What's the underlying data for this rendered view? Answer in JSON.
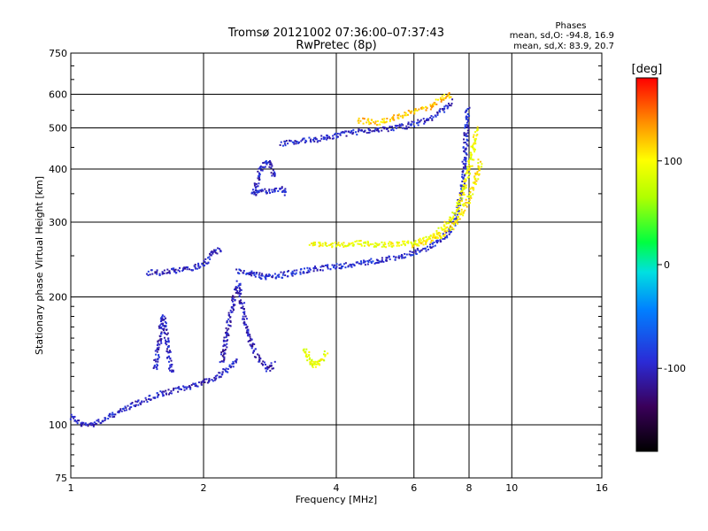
{
  "chart_data": {
    "type": "scatter",
    "title": "Tromsø 20121002 07:36:00–07:37:43",
    "subtitle": "RwPretec (8p)",
    "xlabel": "Frequency [MHz]",
    "ylabel": "Stationary phase Virtual Height [km]",
    "x_scale": "log2",
    "y_scale": "log",
    "xlim": [
      1,
      16
    ],
    "ylim": [
      75,
      750
    ],
    "x_ticks": [
      "1",
      "2",
      "4",
      "6",
      "8",
      "10",
      "16"
    ],
    "y_ticks": [
      "75",
      "100",
      "200",
      "300",
      "400",
      "500",
      "600",
      "750"
    ],
    "grid": true,
    "phase_box": {
      "title": "Phases",
      "line_o": "mean, sd,O: -94.8, 16.9",
      "line_x": "mean, sd,X: 83.9, 20.7"
    },
    "colorbar": {
      "label": "[deg]",
      "range": [
        -180,
        180
      ],
      "ticks": [
        "100",
        "0",
        "-100"
      ]
    },
    "traces": [
      {
        "phase": -100,
        "points": [
          [
            1.0,
            105
          ],
          [
            1.05,
            100
          ],
          [
            1.1,
            100
          ],
          [
            1.2,
            103
          ],
          [
            1.3,
            108
          ],
          [
            1.4,
            112
          ],
          [
            1.5,
            115
          ],
          [
            1.6,
            118
          ],
          [
            1.7,
            120
          ],
          [
            1.8,
            122
          ],
          [
            1.9,
            124
          ],
          [
            2.0,
            126
          ],
          [
            2.1,
            128
          ],
          [
            2.2,
            132
          ],
          [
            2.3,
            138
          ],
          [
            2.4,
            142
          ]
        ]
      },
      {
        "phase": -100,
        "points": [
          [
            1.55,
            135
          ],
          [
            1.58,
            150
          ],
          [
            1.6,
            165
          ],
          [
            1.62,
            180
          ],
          [
            1.64,
            170
          ],
          [
            1.66,
            150
          ],
          [
            1.68,
            140
          ],
          [
            1.7,
            132
          ]
        ]
      },
      {
        "phase": -105,
        "points": [
          [
            2.2,
            140
          ],
          [
            2.25,
            160
          ],
          [
            2.3,
            180
          ],
          [
            2.35,
            200
          ],
          [
            2.4,
            215
          ],
          [
            2.45,
            190
          ],
          [
            2.5,
            170
          ],
          [
            2.6,
            150
          ],
          [
            2.7,
            140
          ],
          [
            2.8,
            135
          ],
          [
            2.9,
            140
          ]
        ]
      },
      {
        "phase": -100,
        "points": [
          [
            1.5,
            228
          ],
          [
            1.6,
            228
          ],
          [
            1.7,
            230
          ],
          [
            1.8,
            232
          ],
          [
            1.9,
            235
          ],
          [
            2.0,
            238
          ],
          [
            2.1,
            255
          ],
          [
            2.2,
            260
          ]
        ]
      },
      {
        "phase": -95,
        "points": [
          [
            2.4,
            230
          ],
          [
            2.5,
            228
          ],
          [
            2.6,
            226
          ],
          [
            2.7,
            224
          ],
          [
            2.8,
            223
          ],
          [
            3.0,
            225
          ],
          [
            3.5,
            232
          ],
          [
            4.0,
            236
          ],
          [
            4.5,
            240
          ],
          [
            5.0,
            244
          ],
          [
            5.5,
            248
          ],
          [
            6.0,
            255
          ],
          [
            6.5,
            262
          ],
          [
            7.0,
            275
          ],
          [
            7.4,
            300
          ],
          [
            7.7,
            350
          ],
          [
            7.8,
            400
          ],
          [
            7.85,
            450
          ],
          [
            7.9,
            500
          ],
          [
            7.95,
            560
          ]
        ]
      },
      {
        "phase": -100,
        "points": [
          [
            2.6,
            350
          ],
          [
            2.8,
            355
          ],
          [
            3.0,
            360
          ],
          [
            3.1,
            350
          ]
        ]
      },
      {
        "phase": -100,
        "points": [
          [
            2.6,
            350
          ],
          [
            2.7,
            400
          ],
          [
            2.8,
            420
          ],
          [
            2.9,
            380
          ]
        ]
      },
      {
        "phase": -98,
        "points": [
          [
            3.0,
            460
          ],
          [
            3.3,
            465
          ],
          [
            3.6,
            470
          ],
          [
            4.0,
            480
          ],
          [
            4.5,
            490
          ],
          [
            5.0,
            495
          ],
          [
            5.5,
            500
          ],
          [
            6.0,
            510
          ],
          [
            6.5,
            525
          ],
          [
            7.0,
            550
          ],
          [
            7.3,
            580
          ]
        ]
      },
      {
        "phase": 95,
        "points": [
          [
            3.5,
            265
          ],
          [
            4.0,
            265
          ],
          [
            4.5,
            268
          ],
          [
            5.0,
            265
          ],
          [
            5.5,
            266
          ],
          [
            6.0,
            268
          ],
          [
            6.5,
            275
          ],
          [
            7.0,
            290
          ],
          [
            7.5,
            320
          ],
          [
            7.8,
            360
          ],
          [
            8.0,
            400
          ],
          [
            8.2,
            450
          ],
          [
            8.3,
            500
          ]
        ]
      },
      {
        "phase": 105,
        "points": [
          [
            6.0,
            265
          ],
          [
            6.5,
            270
          ],
          [
            7.0,
            280
          ],
          [
            7.5,
            300
          ],
          [
            8.0,
            340
          ],
          [
            8.3,
            380
          ],
          [
            8.5,
            420
          ]
        ]
      },
      {
        "phase": 90,
        "points": [
          [
            3.4,
            150
          ],
          [
            3.45,
            145
          ],
          [
            3.5,
            140
          ],
          [
            3.6,
            138
          ],
          [
            3.7,
            142
          ],
          [
            3.8,
            148
          ]
        ]
      },
      {
        "phase": 120,
        "points": [
          [
            4.5,
            520
          ],
          [
            5.0,
            515
          ],
          [
            6.5,
            560
          ],
          [
            7.0,
            590
          ],
          [
            7.3,
            600
          ]
        ]
      }
    ]
  }
}
